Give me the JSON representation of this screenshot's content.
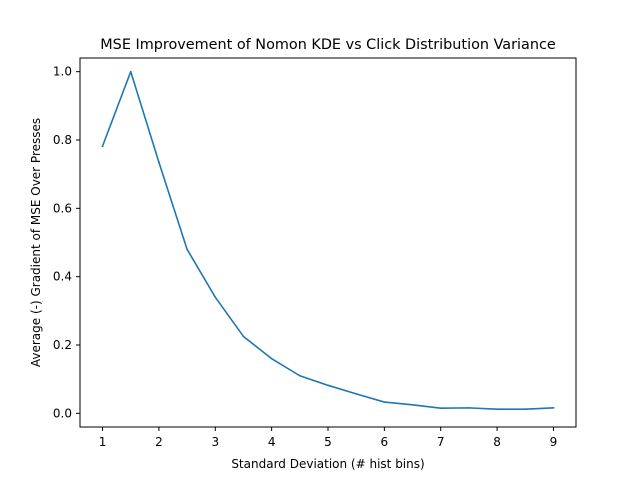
{
  "chart_data": {
    "type": "line",
    "title": "MSE Improvement of Nomon KDE vs Click Distribution Variance",
    "xlabel": "Standard Deviation (# hist bins)",
    "ylabel": "Average (-) Gradient of MSE Over Presses",
    "xlim": [
      0.6,
      9.4
    ],
    "ylim": [
      -0.04,
      1.04
    ],
    "xticks": [
      1,
      2,
      3,
      4,
      5,
      6,
      7,
      8,
      9
    ],
    "yticks": [
      0.0,
      0.2,
      0.4,
      0.6,
      0.8,
      1.0
    ],
    "ytick_labels": [
      "0.0",
      "0.2",
      "0.4",
      "0.6",
      "0.8",
      "1.0"
    ],
    "grid": false,
    "series": [
      {
        "color": "#1f77b4",
        "x": [
          1.0,
          1.5,
          2.0,
          2.5,
          3.0,
          3.5,
          4.0,
          4.5,
          5.0,
          5.5,
          6.0,
          6.5,
          7.0,
          7.5,
          8.0,
          8.5,
          9.0
        ],
        "y": [
          0.782,
          1.0,
          0.735,
          0.48,
          0.34,
          0.225,
          0.16,
          0.11,
          0.082,
          0.057,
          0.033,
          0.025,
          0.015,
          0.016,
          0.012,
          0.012,
          0.016
        ]
      }
    ]
  }
}
